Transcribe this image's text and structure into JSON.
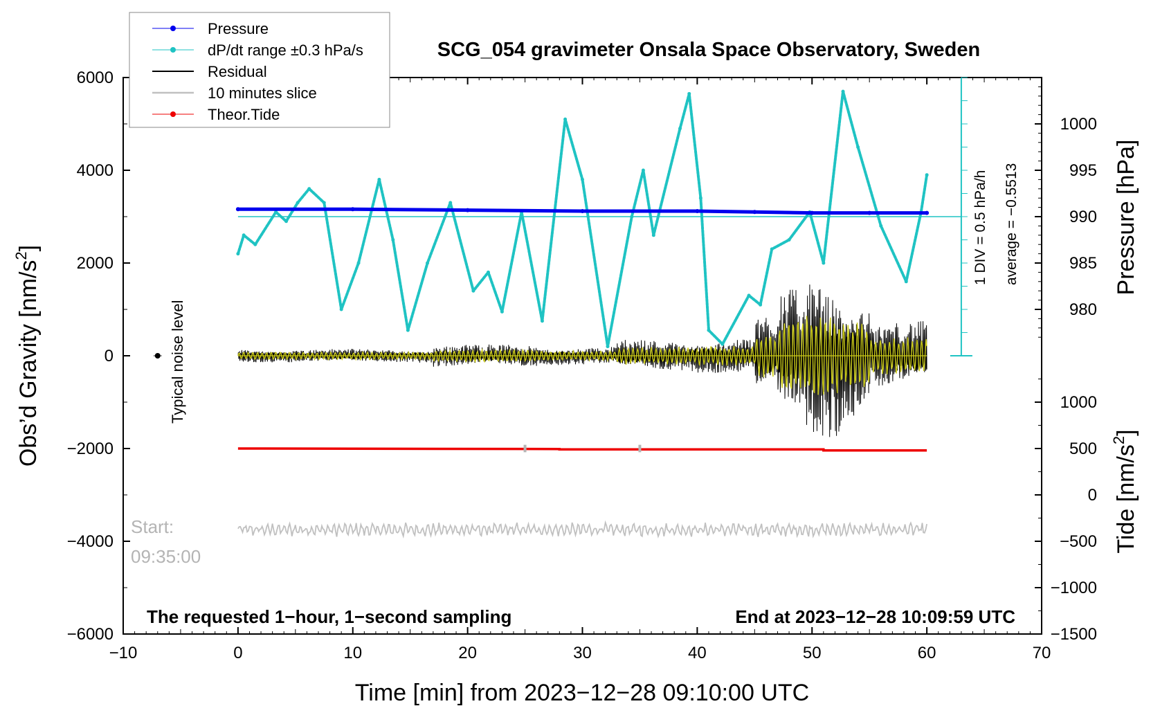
{
  "colors": {
    "pressure": "#0000ee",
    "dpdt": "#1fc3c3",
    "residual": "#000000",
    "slice": "#c0c0c0",
    "tide": "#ee0000",
    "yellow": "#cccc1a",
    "gray_text": "#b4b4b4"
  },
  "chart_data": {
    "type": "line",
    "title": "SCG_054 gravimeter Onsala Space Observatory, Sweden",
    "xlabel": "Time [min] from 2023−12−28 09:10:00 UTC",
    "ylabel_left": "Obs’d Gravity [nm/s",
    "ylabel_left_sup": "2",
    "ylabel_left_close": "]",
    "ylabel_right_pressure": "Pressure [hPa]",
    "ylabel_right_tide": "Tide [nm/s",
    "ylabel_right_tide_sup": "2",
    "ylabel_right_tide_close": "]",
    "xlim": [
      -10,
      70
    ],
    "ylim": [
      -6000,
      6000
    ],
    "x_ticks": [
      -10,
      0,
      10,
      20,
      30,
      40,
      50,
      60,
      70
    ],
    "x_tick_labels": [
      "−10",
      "0",
      "10",
      "20",
      "30",
      "40",
      "50",
      "60",
      "70"
    ],
    "y_ticks": [
      -6000,
      -4000,
      -2000,
      0,
      2000,
      4000,
      6000
    ],
    "y_tick_labels": [
      "−6000",
      "−4000",
      "−2000",
      "0",
      "2000",
      "4000",
      "6000"
    ],
    "pressure_axis": {
      "ticks": [
        980,
        985,
        990,
        995,
        1000
      ],
      "tick_labels": [
        "980",
        "985",
        "990",
        "995",
        "1000"
      ],
      "gravity_at_980": 1000,
      "gravity_per_hpa": 200
    },
    "tide_axis": {
      "ticks": [
        -1500,
        -1000,
        -500,
        0,
        500,
        1000
      ],
      "tick_labels": [
        "−1500",
        "−1000",
        "−500",
        "0",
        "500",
        "1000"
      ],
      "gravity_at_0": -3000,
      "gravity_per_unit": 2
    },
    "dpdt_scale": {
      "label": "1 DIV = 0.5 hPa/h",
      "average_label": "average = −0.5513",
      "top": 6000,
      "bottom": 0,
      "divisions": 12,
      "reference_level": 3000
    },
    "series": [
      {
        "name": "Pressure",
        "unit": "hPa",
        "x": [
          0,
          10,
          20,
          30,
          40,
          45,
          50,
          55,
          60
        ],
        "values": [
          990.8,
          990.8,
          990.7,
          990.6,
          990.6,
          990.5,
          990.4,
          990.4,
          990.4
        ]
      },
      {
        "name": "dP/dt range ±0.3 hPa/s",
        "x": [
          0,
          0.5,
          1.5,
          3.3,
          4.2,
          5.2,
          6.2,
          7.5,
          9.0,
          10.5,
          12.3,
          13.5,
          14.8,
          16.5,
          18.5,
          20.5,
          21.8,
          23.0,
          24.7,
          26.5,
          28.5,
          30.0,
          32.2,
          34.3,
          35.3,
          36.2,
          38.5,
          39.3,
          40.3,
          41.0,
          42.2,
          44.5,
          45.5,
          46.5,
          48.0,
          49.8,
          51.0,
          52.7,
          54.0,
          56.0,
          58.2,
          59.5,
          60.0
        ],
        "values": [
          2200,
          2600,
          2400,
          3100,
          2900,
          3300,
          3600,
          3300,
          1000,
          2000,
          3800,
          2500,
          550,
          2000,
          3300,
          1400,
          1800,
          950,
          3100,
          750,
          5100,
          3800,
          200,
          3000,
          4000,
          2600,
          4900,
          5650,
          3400,
          550,
          250,
          1300,
          1100,
          2300,
          2500,
          3100,
          2000,
          5700,
          4500,
          2800,
          1600,
          3100,
          3900
        ]
      },
      {
        "name": "Residual",
        "segments": [
          {
            "x0": 0,
            "x1": 17,
            "amp": 150
          },
          {
            "x0": 17,
            "x1": 26,
            "amp": 250
          },
          {
            "x0": 26,
            "x1": 33,
            "amp": 200
          },
          {
            "x0": 33,
            "x1": 40,
            "amp": 350
          },
          {
            "x0": 40,
            "x1": 45,
            "amp": 400
          },
          {
            "x0": 45,
            "x1": 47,
            "amp": 900
          },
          {
            "x0": 47,
            "x1": 49.5,
            "amp": 1500
          },
          {
            "x0": 49.5,
            "x1": 52.5,
            "amp": 1850
          },
          {
            "x0": 52.5,
            "x1": 55,
            "amp": 1400
          },
          {
            "x0": 55,
            "x1": 60,
            "amp": 750
          }
        ]
      },
      {
        "name": "10 minutes slice",
        "x0": 0,
        "x1": 60,
        "center": -3750,
        "amp": 150
      },
      {
        "name": "Theor.Tide",
        "x": [
          0,
          28,
          28,
          51,
          51,
          60
        ],
        "values": [
          -2000,
          -2010,
          -2020,
          -2020,
          -2040,
          -2040
        ]
      }
    ],
    "tide_markers_x": [
      25,
      35
    ],
    "noise_level_x": -7,
    "noise_level_value": 0,
    "legend_position": "top-left",
    "legend": [
      "Pressure",
      "dP/dt range ±0.3 hPa/s",
      "Residual",
      "10 minutes slice",
      "Theor.Tide"
    ]
  },
  "annotations": {
    "noise_label": "Typical noise level",
    "start_label": "Start:",
    "start_time": "09:35:00",
    "footer_left": "The requested 1−hour, 1−second sampling",
    "footer_right": "End at 2023−12−28 10:09:59 UTC"
  }
}
